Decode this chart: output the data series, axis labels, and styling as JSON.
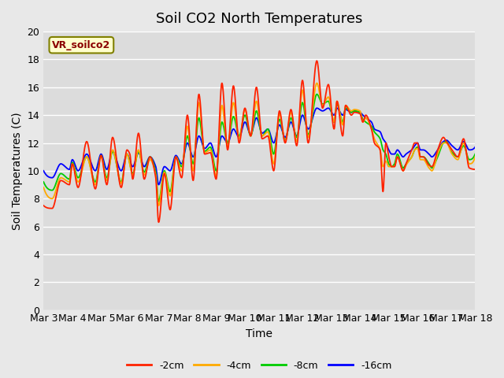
{
  "title": "Soil CO2 North Temperatures",
  "xlabel": "Time",
  "ylabel": "Soil Temperatures (C)",
  "ylim": [
    0,
    20
  ],
  "yticks": [
    0,
    2,
    4,
    6,
    8,
    10,
    12,
    14,
    16,
    18,
    20
  ],
  "xtick_labels": [
    "Mar 3",
    "Mar 4",
    "Mar 5",
    "Mar 6",
    "Mar 7",
    "Mar 8",
    "Mar 9",
    "Mar 10",
    "Mar 11",
    "Mar 12",
    "Mar 13",
    "Mar 14",
    "Mar 15",
    "Mar 16",
    "Mar 17",
    "Mar 18"
  ],
  "series_colors": [
    "#ff2200",
    "#ffaa00",
    "#00cc00",
    "#0000ff"
  ],
  "series_labels": [
    "-2cm",
    "-4cm",
    "-8cm",
    "-16cm"
  ],
  "legend_label": "VR_soilco2",
  "bg_color": "#dcdcdc",
  "plot_bg": "#dcdcdc",
  "fig_bg": "#e8e8e8",
  "grid_color": "#ffffff",
  "title_fontsize": 13,
  "axis_label_fontsize": 10,
  "tick_fontsize": 9
}
